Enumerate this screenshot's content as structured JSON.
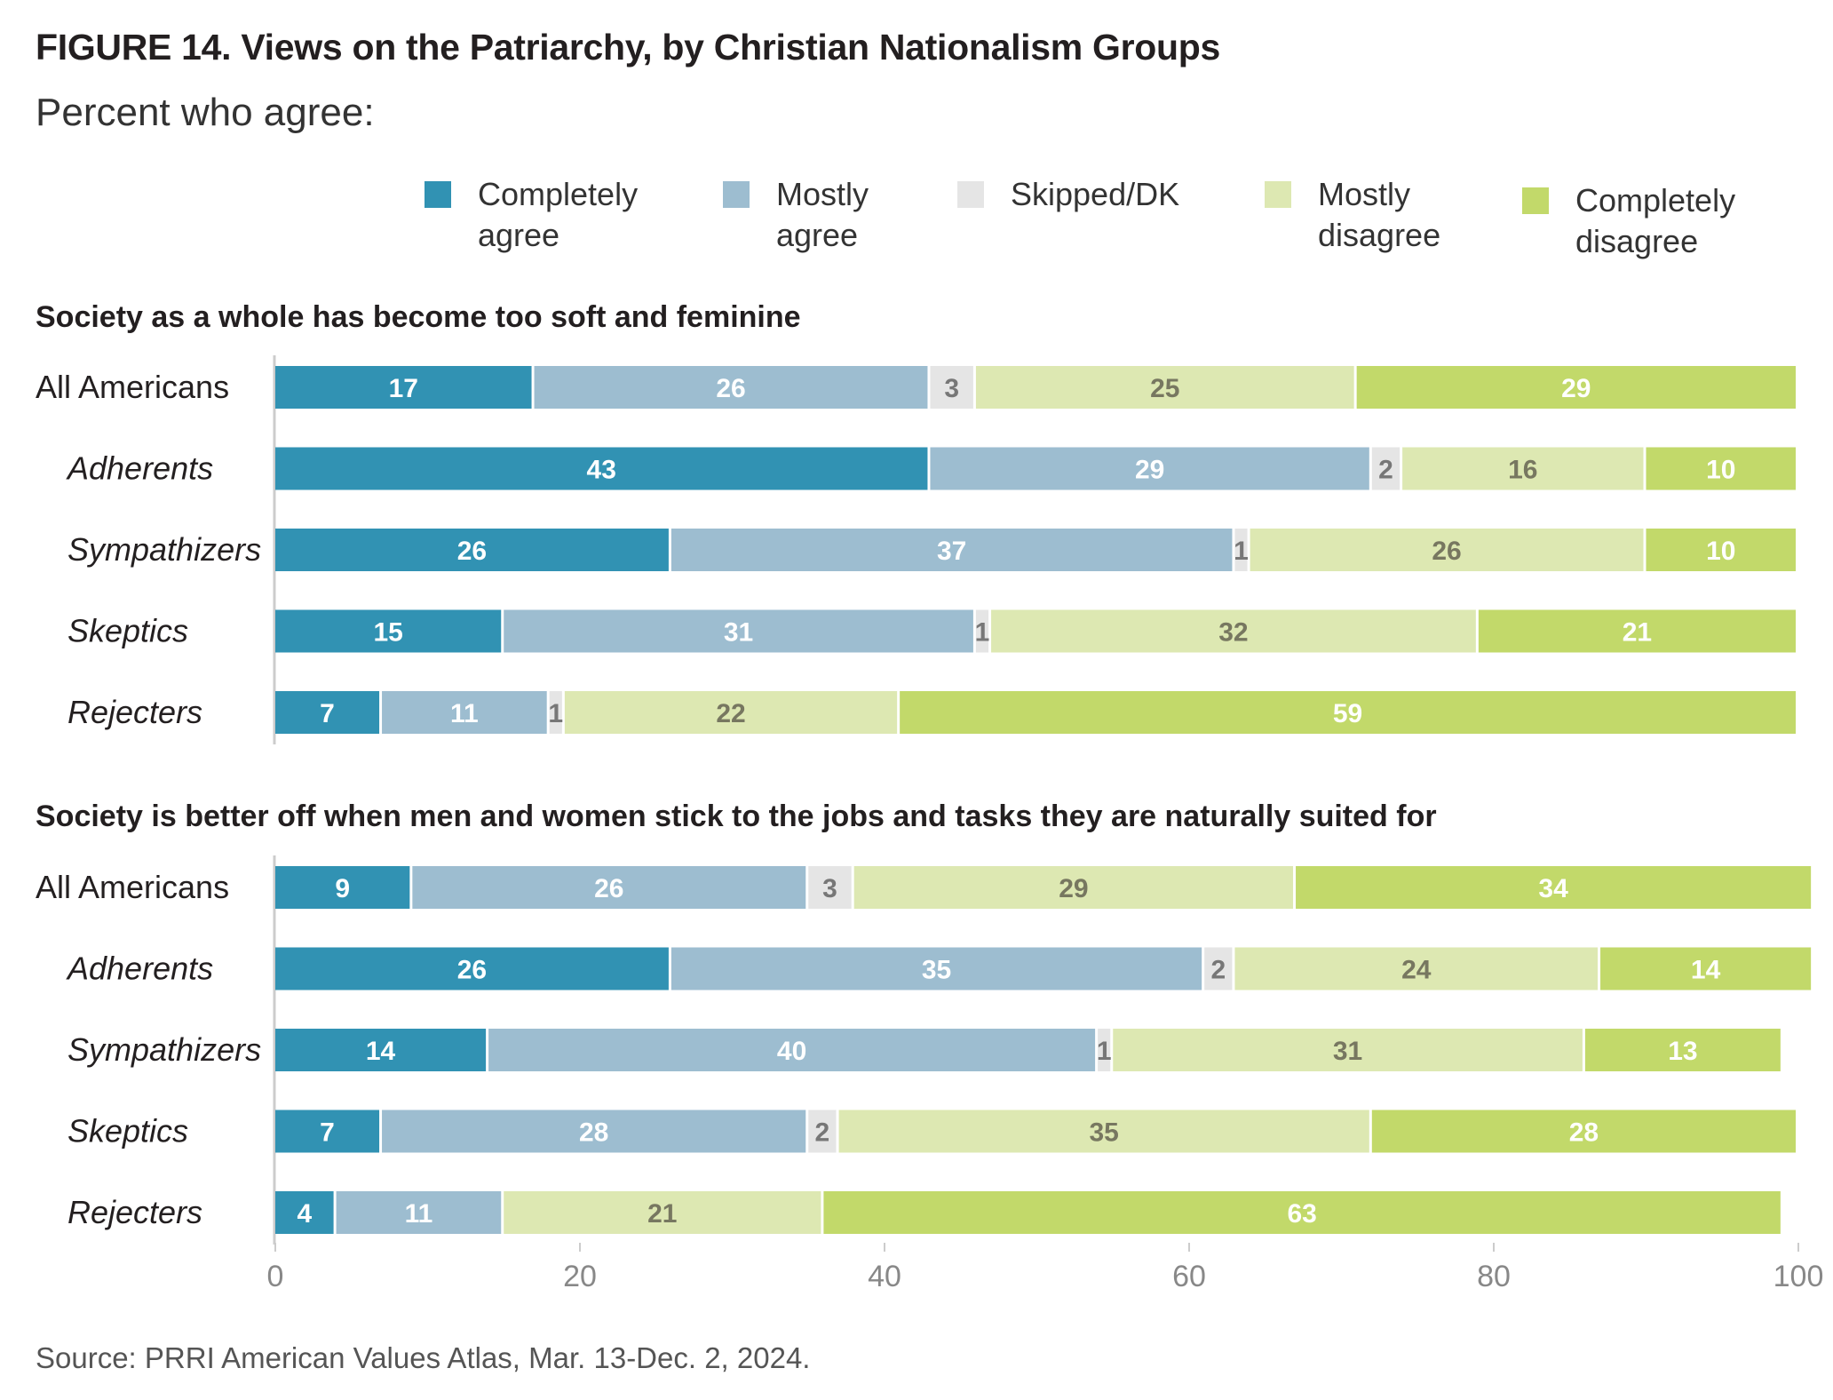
{
  "title": "FIGURE 14.  Views on the Patriarchy, by Christian Nationalism Groups",
  "subtitle": "Percent who agree:",
  "source": "Source: PRRI American Values Atlas, Mar. 13-Dec. 2, 2024.",
  "legend": [
    {
      "label": "Completely agree",
      "color": "#3192b3"
    },
    {
      "label": "Mostly agree",
      "color": "#9dbdd0"
    },
    {
      "label": "Skipped/DK",
      "color": "#e5e5e5"
    },
    {
      "label": "Mostly disagree",
      "color": "#dde8b2"
    },
    {
      "label": "Completely disagree",
      "color": "#c2d96a"
    }
  ],
  "chart_data": [
    {
      "type": "bar",
      "orientation": "horizontal",
      "stacked": true,
      "title": "Society as a whole has become too soft and feminine",
      "categories": [
        "All Americans",
        "Adherents",
        "Sympathizers",
        "Skeptics",
        "Rejecters"
      ],
      "series": [
        {
          "name": "Completely agree",
          "color": "#3192b3",
          "values": [
            17,
            43,
            26,
            15,
            7
          ]
        },
        {
          "name": "Mostly agree",
          "color": "#9dbdd0",
          "values": [
            26,
            29,
            37,
            31,
            11
          ]
        },
        {
          "name": "Skipped/DK",
          "color": "#e5e5e5",
          "values": [
            3,
            2,
            1,
            1,
            1
          ]
        },
        {
          "name": "Mostly disagree",
          "color": "#dde8b2",
          "values": [
            25,
            16,
            26,
            32,
            22
          ]
        },
        {
          "name": "Completely disagree",
          "color": "#c2d96a",
          "values": [
            29,
            10,
            10,
            21,
            59
          ]
        }
      ],
      "xlim": [
        0,
        100
      ]
    },
    {
      "type": "bar",
      "orientation": "horizontal",
      "stacked": true,
      "title": "Society is better off when men and women stick to the jobs and tasks they are naturally suited for",
      "categories": [
        "All Americans",
        "Adherents",
        "Sympathizers",
        "Skeptics",
        "Rejecters"
      ],
      "series": [
        {
          "name": "Completely agree",
          "color": "#3192b3",
          "values": [
            9,
            26,
            14,
            7,
            4
          ]
        },
        {
          "name": "Mostly agree",
          "color": "#9dbdd0",
          "values": [
            26,
            35,
            40,
            28,
            11
          ]
        },
        {
          "name": "Skipped/DK",
          "color": "#e5e5e5",
          "values": [
            3,
            2,
            1,
            2,
            0
          ]
        },
        {
          "name": "Mostly disagree",
          "color": "#dde8b2",
          "values": [
            29,
            24,
            31,
            35,
            21
          ]
        },
        {
          "name": "Completely disagree",
          "color": "#c2d96a",
          "values": [
            34,
            14,
            13,
            28,
            63
          ]
        }
      ],
      "xlim": [
        0,
        100
      ],
      "xticks": [
        "0",
        "20",
        "40",
        "60",
        "80",
        "100"
      ]
    }
  ]
}
